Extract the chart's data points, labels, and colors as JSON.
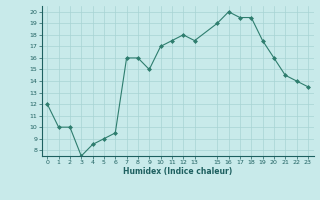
{
  "x": [
    0,
    1,
    2,
    3,
    4,
    5,
    6,
    7,
    8,
    9,
    10,
    11,
    12,
    13,
    15,
    16,
    17,
    18,
    19,
    20,
    21,
    22,
    23
  ],
  "y": [
    12,
    10,
    10,
    7.5,
    8.5,
    9,
    9.5,
    16,
    16,
    15,
    17,
    17.5,
    18,
    17.5,
    19,
    20,
    19.5,
    19.5,
    17.5,
    16,
    14.5,
    14,
    13.5
  ],
  "line_color": "#2e7d6e",
  "marker_color": "#2e7d6e",
  "bg_color": "#c8eaea",
  "grid_color": "#a8d4d4",
  "xlabel": "Humidex (Indice chaleur)",
  "xlim": [
    -0.5,
    23.5
  ],
  "ylim": [
    7.5,
    20.5
  ],
  "yticks": [
    8,
    9,
    10,
    11,
    12,
    13,
    14,
    15,
    16,
    17,
    18,
    19,
    20
  ],
  "xticks": [
    0,
    1,
    2,
    3,
    4,
    5,
    6,
    7,
    8,
    9,
    10,
    11,
    12,
    13,
    15,
    16,
    17,
    18,
    19,
    20,
    21,
    22,
    23
  ]
}
